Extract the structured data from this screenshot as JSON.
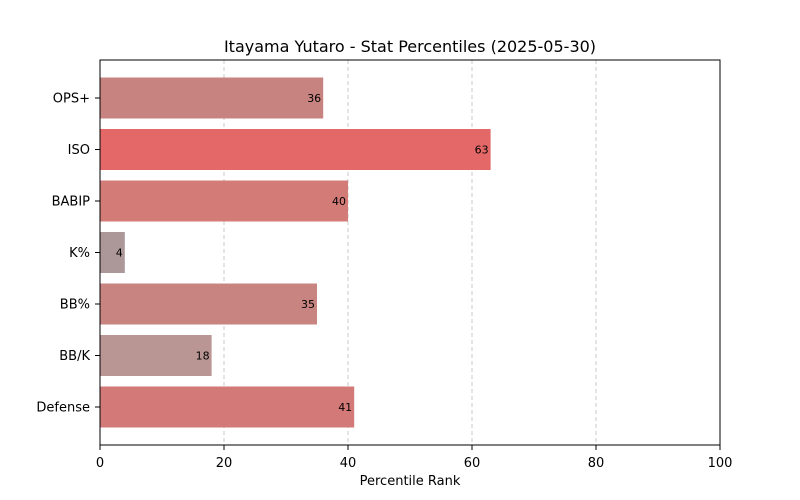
{
  "chart_data": {
    "type": "bar",
    "orientation": "horizontal",
    "title": "Itayama Yutaro - Stat Percentiles (2025-05-30)",
    "xlabel": "Percentile Rank",
    "ylabel": "",
    "xlim": [
      0,
      100
    ],
    "xticks": [
      0,
      20,
      40,
      60,
      80,
      100
    ],
    "grid": "vertical dashed",
    "categories": [
      "OPS+",
      "ISO",
      "BABIP",
      "K%",
      "BB%",
      "BB/K",
      "Defense"
    ],
    "values": [
      36,
      63,
      40,
      4,
      35,
      18,
      41
    ],
    "colors": [
      "#c7837f",
      "#e36867",
      "#d27b77",
      "#ad9899",
      "#c88481",
      "#b99694",
      "#d37a78"
    ]
  }
}
